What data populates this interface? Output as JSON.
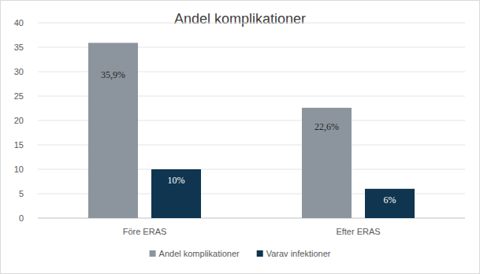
{
  "chart_data": {
    "type": "bar",
    "title": "Andel komplikationer",
    "categories": [
      "Före ERAS",
      "Efter ERAS"
    ],
    "series": [
      {
        "name": "Andel komplikationer",
        "color": "#8c959e",
        "values": [
          35.9,
          22.6
        ],
        "value_labels": [
          "35,9%",
          "22,6%"
        ]
      },
      {
        "name": "Varav infektioner",
        "color": "#0f3550",
        "values": [
          10,
          6
        ],
        "value_labels": [
          "10%",
          "6%"
        ]
      }
    ],
    "ylim": [
      0,
      40
    ],
    "yticks": [
      0,
      5,
      10,
      15,
      20,
      25,
      30,
      35,
      40
    ],
    "grid": true,
    "legend": "bottom",
    "data_labels": true
  }
}
